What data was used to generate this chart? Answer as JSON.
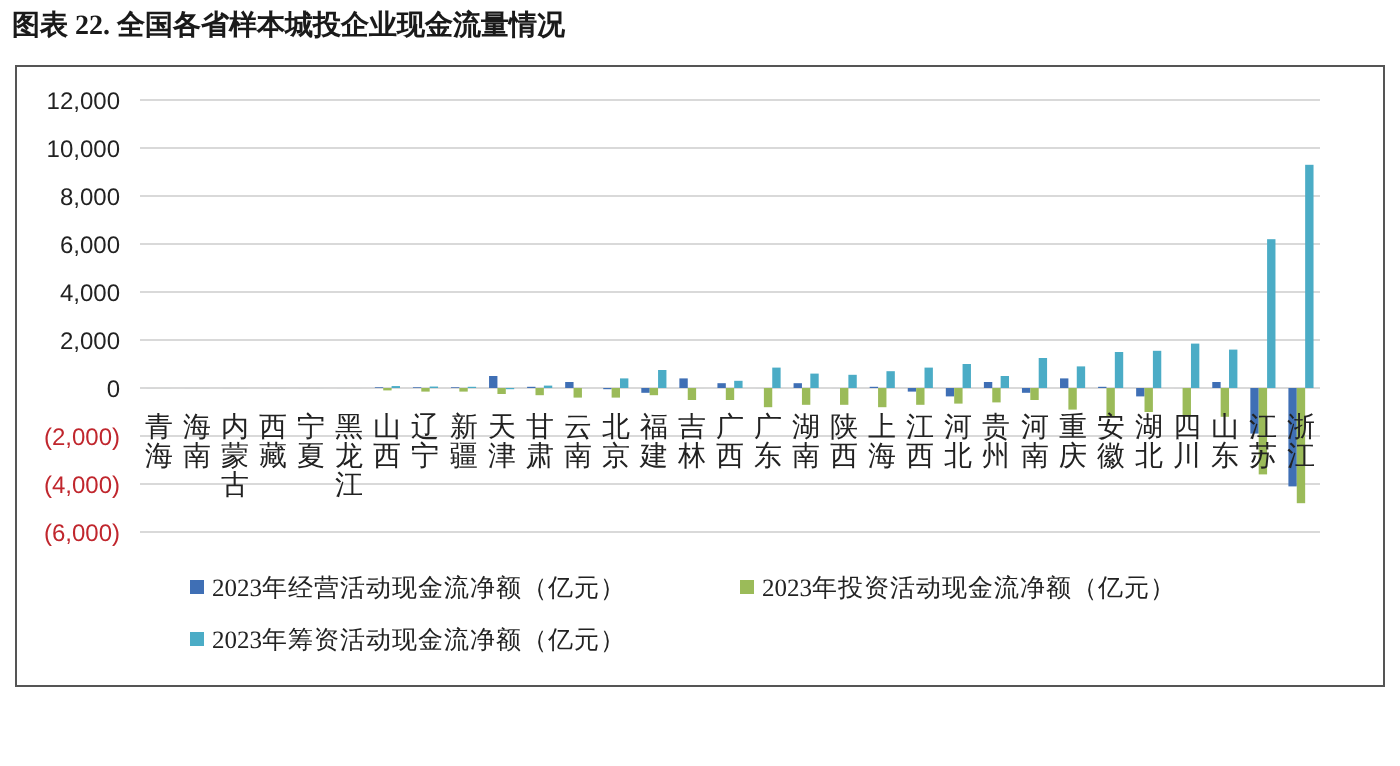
{
  "chart_data": {
    "type": "bar",
    "title": "图表 22. 全国各省样本城投企业现金流量情况",
    "categories": [
      "青海",
      "海南",
      "内蒙古",
      "西藏",
      "宁夏",
      "黑龙江",
      "山西",
      "辽宁",
      "新疆",
      "天津",
      "甘肃",
      "云南",
      "北京",
      "福建",
      "吉林",
      "广西",
      "广东",
      "湖南",
      "陕西",
      "上海",
      "江西",
      "河北",
      "贵州",
      "河南",
      "重庆",
      "安徽",
      "湖北",
      "四川",
      "山东",
      "江苏",
      "浙江"
    ],
    "series": [
      {
        "name": "2023年经营活动现金流净额（亿元）",
        "color": "#3f6fb5",
        "values": [
          0,
          0,
          0,
          0,
          0,
          0,
          30,
          30,
          30,
          500,
          50,
          250,
          -50,
          -200,
          400,
          200,
          0,
          200,
          0,
          50,
          -150,
          -350,
          250,
          -200,
          400,
          50,
          -350,
          0,
          250,
          -1900,
          -4100
        ]
      },
      {
        "name": "2023年投资活动现金流净额（亿元）",
        "color": "#9bbb59",
        "values": [
          0,
          0,
          0,
          0,
          0,
          0,
          -100,
          -150,
          -150,
          -250,
          -300,
          -400,
          -400,
          -300,
          -500,
          -500,
          -800,
          -700,
          -700,
          -800,
          -700,
          -650,
          -600,
          -500,
          -900,
          -1200,
          -1000,
          -1200,
          -1200,
          -3600,
          -4800
        ]
      },
      {
        "name": "2023年筹资活动现金流净额（亿元）",
        "color": "#4bacc6",
        "values": [
          0,
          0,
          0,
          0,
          0,
          0,
          80,
          60,
          50,
          -50,
          100,
          0,
          400,
          750,
          0,
          300,
          850,
          600,
          550,
          700,
          850,
          1000,
          500,
          1250,
          900,
          1500,
          1550,
          1850,
          1600,
          6200,
          9300
        ]
      }
    ],
    "ylim": [
      -6000,
      12000
    ],
    "yticks": [
      {
        "value": -6000,
        "label": "(6,000)"
      },
      {
        "value": -4000,
        "label": "(4,000)"
      },
      {
        "value": -2000,
        "label": "(2,000)"
      },
      0,
      {
        "value": 2000,
        "label": "2,000"
      },
      {
        "value": 4000,
        "label": "4,000"
      },
      {
        "value": 6000,
        "label": "6,000"
      },
      {
        "value": 8000,
        "label": "8,000"
      },
      {
        "value": 10000,
        "label": "10,000"
      },
      {
        "value": 12000,
        "label": "12,000"
      }
    ],
    "grid": "y",
    "legend": "bottom"
  }
}
